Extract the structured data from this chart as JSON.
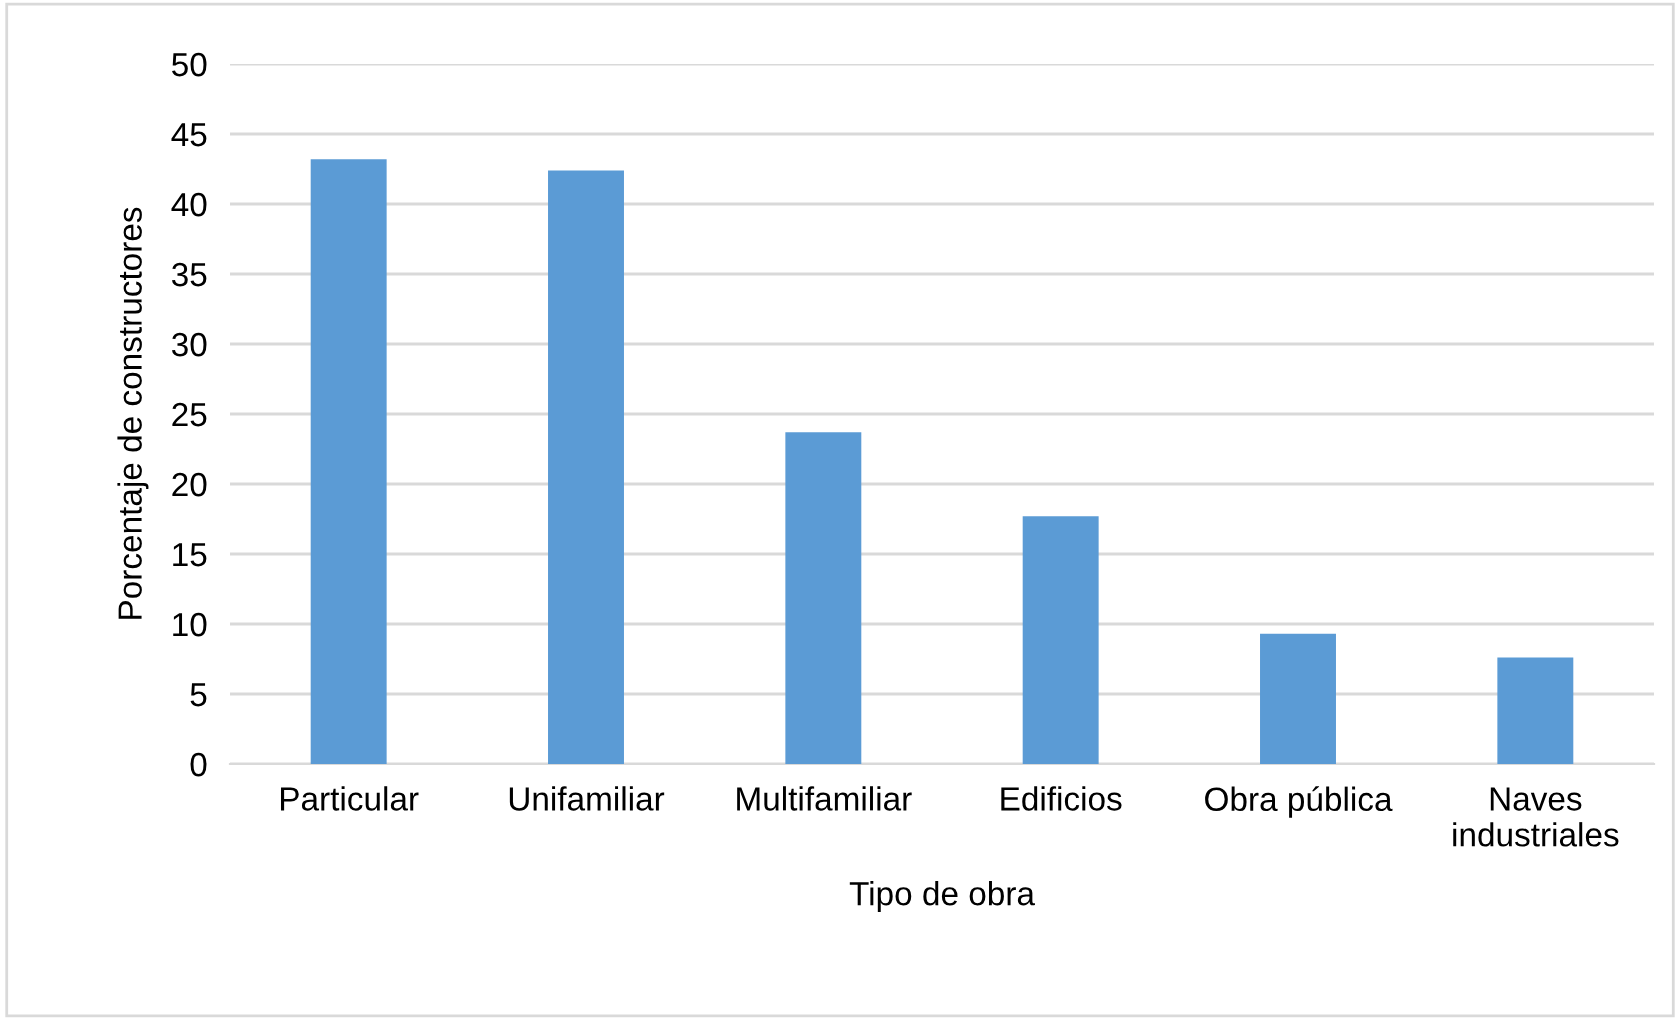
{
  "chart_data": {
    "type": "bar",
    "xlabel": "Tipo de obra",
    "ylabel": "Porcentaje de constructores",
    "categories": [
      "Particular",
      "Unifamiliar",
      "Multifamiliar",
      "Edificios",
      "Obra pública",
      "Naves\nindustriales"
    ],
    "values": [
      43.2,
      42.4,
      23.7,
      17.7,
      9.3,
      7.6
    ],
    "color": "#5b9bd5",
    "ylim": [
      0,
      50
    ],
    "yticks": [
      0,
      5,
      10,
      15,
      20,
      25,
      30,
      35,
      40,
      45,
      50
    ],
    "grid": "y",
    "legend": false
  }
}
